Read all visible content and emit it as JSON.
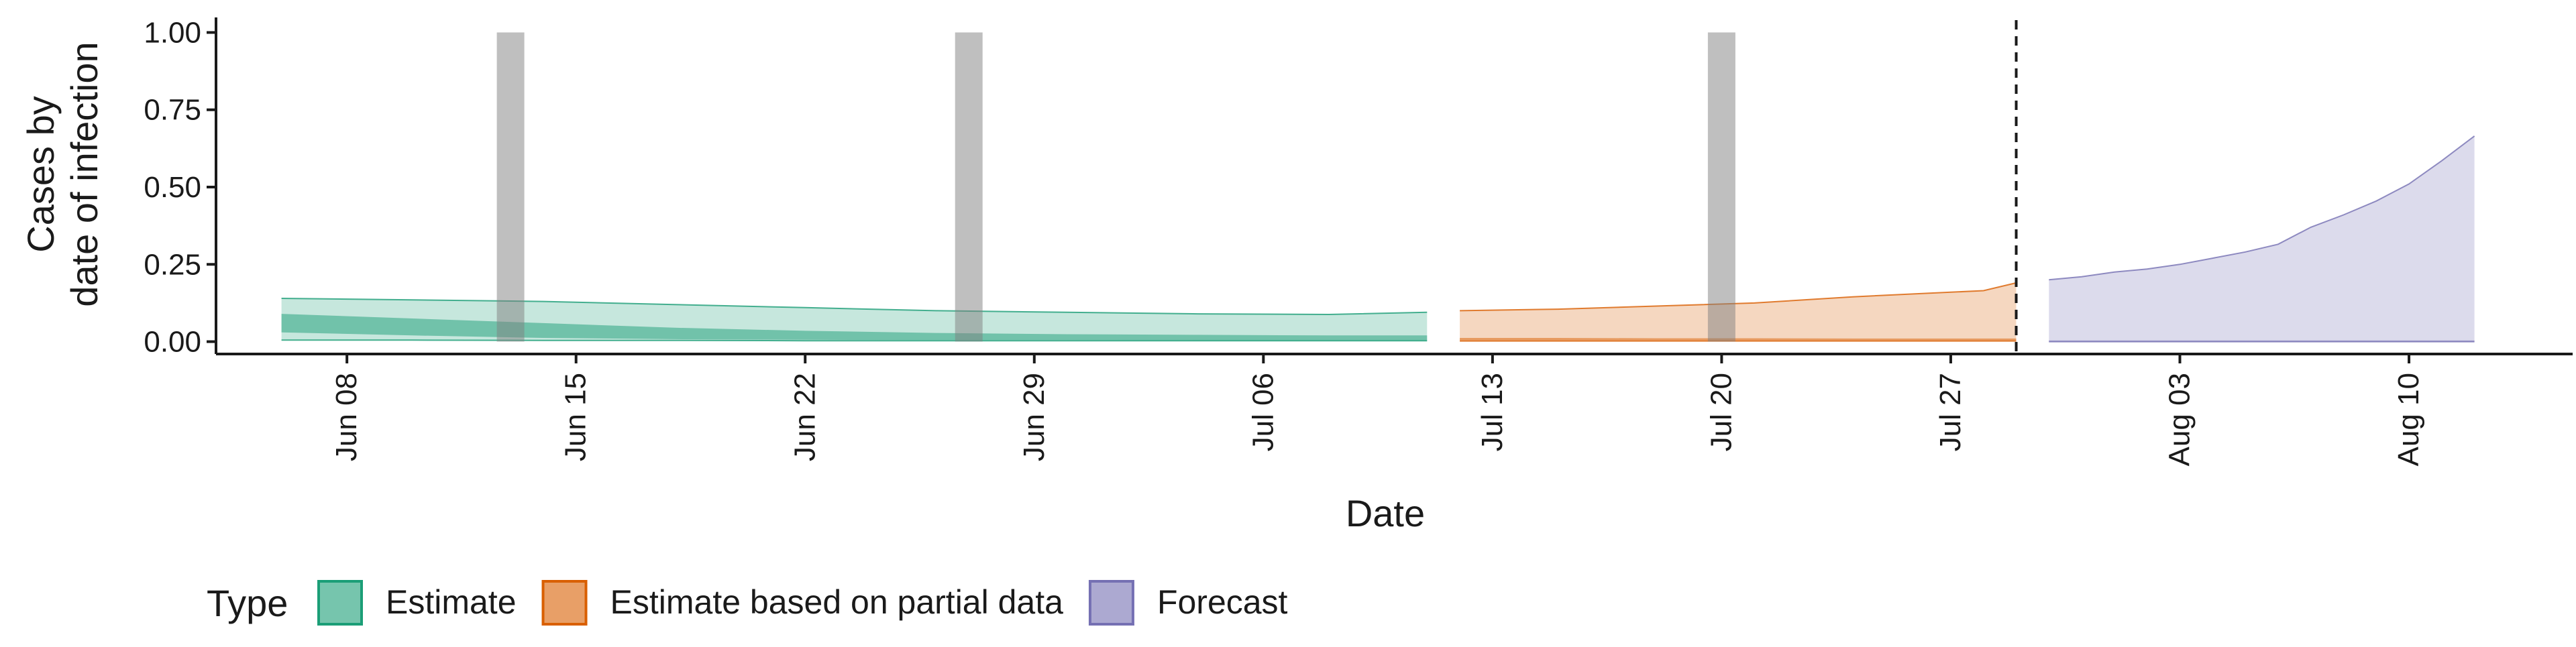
{
  "chart_data": {
    "type": "area",
    "xlabel": "Date",
    "ylabel_lines": [
      "Cases by",
      "date of infection"
    ],
    "xlim": [
      "2020-06-04",
      "2020-08-15"
    ],
    "ylim": [
      -0.04,
      1.04
    ],
    "x_ticks": [
      {
        "date": "2020-06-08",
        "label": "Jun 08"
      },
      {
        "date": "2020-06-15",
        "label": "Jun 15"
      },
      {
        "date": "2020-06-22",
        "label": "Jun 22"
      },
      {
        "date": "2020-06-29",
        "label": "Jun 29"
      },
      {
        "date": "2020-07-06",
        "label": "Jul 06"
      },
      {
        "date": "2020-07-13",
        "label": "Jul 13"
      },
      {
        "date": "2020-07-20",
        "label": "Jul 20"
      },
      {
        "date": "2020-07-27",
        "label": "Jul 27"
      },
      {
        "date": "2020-08-03",
        "label": "Aug 03"
      },
      {
        "date": "2020-08-10",
        "label": "Aug 10"
      }
    ],
    "y_ticks": [
      {
        "value": 0,
        "label": "0.00"
      },
      {
        "value": 0.25,
        "label": "0.25"
      },
      {
        "value": 0.5,
        "label": "0.50"
      },
      {
        "value": 0.75,
        "label": "0.75"
      },
      {
        "value": 1,
        "label": "1.00"
      }
    ],
    "grid": false,
    "forecast_cutoff": "2020-07-29",
    "highlight_bars": [
      {
        "date": "2020-06-13",
        "ymax": 1.0
      },
      {
        "date": "2020-06-27",
        "ymax": 1.0
      },
      {
        "date": "2020-07-20",
        "ymax": 1.0
      }
    ],
    "series": [
      {
        "name": "Estimate",
        "color": "#1B9E77",
        "x": [
          "2020-06-06",
          "2020-06-10",
          "2020-06-14",
          "2020-06-18",
          "2020-06-22",
          "2020-06-26",
          "2020-06-30",
          "2020-07-04",
          "2020-07-08",
          "2020-07-11"
        ],
        "outer_upper": [
          0.14,
          0.135,
          0.13,
          0.12,
          0.11,
          0.1,
          0.095,
          0.09,
          0.088,
          0.095
        ],
        "outer_lower": [
          0.005,
          0.005,
          0.004,
          0.004,
          0.003,
          0.003,
          0.003,
          0.003,
          0.003,
          0.003
        ],
        "inner_upper": [
          0.09,
          0.075,
          0.06,
          0.045,
          0.035,
          0.028,
          0.024,
          0.022,
          0.02,
          0.02
        ],
        "inner_lower": [
          0.03,
          0.02,
          0.012,
          0.008,
          0.006,
          0.005,
          0.005,
          0.004,
          0.004,
          0.004
        ]
      },
      {
        "name": "Estimate based on partial data",
        "color": "#D95F02",
        "x": [
          "2020-07-12",
          "2020-07-15",
          "2020-07-18",
          "2020-07-21",
          "2020-07-24",
          "2020-07-27",
          "2020-07-28",
          "2020-07-29"
        ],
        "outer_upper": [
          0.1,
          0.105,
          0.115,
          0.125,
          0.145,
          0.16,
          0.165,
          0.19
        ],
        "outer_lower": [
          0.002,
          0.002,
          0.002,
          0.002,
          0.002,
          0.002,
          0.002,
          0.002
        ],
        "inner_upper": [
          0.012,
          0.012,
          0.011,
          0.011,
          0.01,
          0.01,
          0.01,
          0.01
        ],
        "inner_lower": [
          0.004,
          0.004,
          0.004,
          0.004,
          0.004,
          0.004,
          0.004,
          0.004
        ]
      },
      {
        "name": "Forecast",
        "color": "#7570B3",
        "x": [
          "2020-07-30",
          "2020-07-31",
          "2020-08-01",
          "2020-08-02",
          "2020-08-03",
          "2020-08-04",
          "2020-08-05",
          "2020-08-06",
          "2020-08-07",
          "2020-08-08",
          "2020-08-09",
          "2020-08-10",
          "2020-08-11",
          "2020-08-12"
        ],
        "outer_upper": [
          0.2,
          0.21,
          0.225,
          0.235,
          0.25,
          0.27,
          0.29,
          0.315,
          0.37,
          0.41,
          0.455,
          0.51,
          0.585,
          0.665
        ],
        "outer_lower": [
          0.0,
          0.0,
          0.0,
          0.0,
          0.0,
          0.0,
          0.0,
          0.0,
          0.0,
          0.0,
          0.0,
          0.0,
          0.0,
          0.0
        ],
        "inner_upper": [
          0.004,
          0.004,
          0.004,
          0.004,
          0.004,
          0.004,
          0.004,
          0.004,
          0.004,
          0.004,
          0.004,
          0.004,
          0.004,
          0.004
        ],
        "inner_lower": [
          0.0,
          0.0,
          0.0,
          0.0,
          0.0,
          0.0,
          0.0,
          0.0,
          0.0,
          0.0,
          0.0,
          0.0,
          0.0,
          0.0
        ]
      }
    ],
    "legend": {
      "position": "bottom",
      "title": "Type",
      "items": [
        "Estimate",
        "Estimate based on partial data",
        "Forecast"
      ]
    }
  }
}
